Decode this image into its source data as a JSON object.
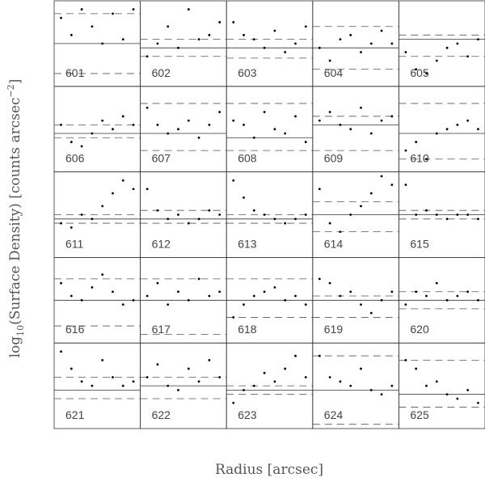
{
  "chart_data": {
    "type": "scatter",
    "x_label": "Radius [arcsec]",
    "y_label": [
      "log",
      "10",
      "(Surface Density) [counts arcsec",
      "−2",
      "]"
    ],
    "xlim": [
      0,
      1
    ],
    "ylim": [
      0,
      1
    ],
    "color": "#000000",
    "x": [
      0.08,
      0.2,
      0.32,
      0.44,
      0.56,
      0.68,
      0.8,
      0.92
    ],
    "panels": [
      {
        "label": "601",
        "values": [
          0.8,
          0.6,
          0.9,
          0.7,
          0.5,
          0.85,
          0.55,
          0.9
        ],
        "solid": 0.5,
        "dashed": [
          0.85,
          0.15
        ]
      },
      {
        "label": "602",
        "values": [
          0.35,
          0.5,
          0.7,
          0.45,
          0.9,
          0.55,
          0.6,
          0.75
        ],
        "solid": 0.45,
        "dashed": [
          0.55,
          0.35
        ]
      },
      {
        "label": "603",
        "values": [
          0.75,
          0.6,
          0.55,
          0.45,
          0.65,
          0.4,
          0.5,
          0.7
        ],
        "solid": 0.45,
        "dashed": [
          0.55,
          0.33
        ]
      },
      {
        "label": "604",
        "values": [
          0.45,
          0.3,
          0.55,
          0.6,
          0.4,
          0.5,
          0.65,
          0.5
        ],
        "solid": 0.45,
        "dashed": [
          0.7,
          0.2
        ]
      },
      {
        "label": "605",
        "values": [
          0.4,
          0.2,
          0.15,
          0.3,
          0.45,
          0.5,
          0.35,
          0.55
        ],
        "solid": 0.55,
        "dashed": [
          0.6,
          0.35
        ]
      },
      {
        "label": "606",
        "values": [
          0.55,
          0.35,
          0.3,
          0.45,
          0.6,
          0.5,
          0.65,
          0.55
        ],
        "solid": 0.45,
        "dashed": [
          0.55,
          0.4
        ]
      },
      {
        "label": "607",
        "values": [
          0.75,
          0.55,
          0.45,
          0.5,
          0.6,
          0.4,
          0.55,
          0.7
        ],
        "solid": 0.45,
        "dashed": [
          0.8,
          0.25
        ]
      },
      {
        "label": "608",
        "values": [
          0.6,
          0.55,
          0.4,
          0.7,
          0.5,
          0.45,
          0.65,
          0.35
        ],
        "solid": 0.4,
        "dashed": [
          0.8,
          0.25
        ]
      },
      {
        "label": "609",
        "values": [
          0.6,
          0.7,
          0.55,
          0.5,
          0.75,
          0.45,
          0.6,
          0.65
        ],
        "solid": 0.55,
        "dashed": [
          0.65,
          0.25
        ]
      },
      {
        "label": "610",
        "values": [
          0.25,
          0.35,
          0.15,
          0.45,
          0.5,
          0.55,
          0.6,
          0.5
        ],
        "solid": 0.45,
        "dashed": [
          0.8,
          0.15
        ]
      },
      {
        "label": "611",
        "values": [
          0.4,
          0.35,
          0.5,
          0.45,
          0.6,
          0.75,
          0.9,
          0.8
        ],
        "solid": 0.45,
        "dashed": [
          0.5,
          0.4
        ]
      },
      {
        "label": "612",
        "values": [
          0.8,
          0.55,
          0.45,
          0.5,
          0.4,
          0.45,
          0.55,
          0.5
        ],
        "solid": 0.45,
        "dashed": [
          0.55,
          0.4
        ]
      },
      {
        "label": "613",
        "values": [
          0.9,
          0.7,
          0.55,
          0.5,
          0.45,
          0.4,
          0.45,
          0.5
        ],
        "solid": 0.45,
        "dashed": [
          0.5,
          0.4
        ]
      },
      {
        "label": "614",
        "values": [
          0.8,
          0.4,
          0.3,
          0.5,
          0.6,
          0.75,
          0.95,
          0.85
        ],
        "solid": 0.5,
        "dashed": [
          0.65,
          0.3
        ]
      },
      {
        "label": "615",
        "values": [
          0.85,
          0.5,
          0.55,
          0.5,
          0.45,
          0.5,
          0.5,
          0.45
        ],
        "solid": 0.5,
        "dashed": [
          0.55,
          0.45
        ]
      },
      {
        "label": "616",
        "values": [
          0.7,
          0.55,
          0.5,
          0.65,
          0.8,
          0.6,
          0.45,
          0.5
        ],
        "solid": 0.5,
        "dashed": [
          0.75,
          0.2
        ]
      },
      {
        "label": "617",
        "values": [
          0.55,
          0.7,
          0.45,
          0.6,
          0.5,
          0.75,
          0.55,
          0.6
        ],
        "solid": 0.5,
        "dashed": [
          0.75,
          0.1
        ]
      },
      {
        "label": "618",
        "values": [
          0.3,
          0.45,
          0.55,
          0.6,
          0.65,
          0.5,
          0.55,
          0.45
        ],
        "solid": 0.5,
        "dashed": [
          0.75,
          0.3
        ]
      },
      {
        "label": "619",
        "values": [
          0.75,
          0.7,
          0.55,
          0.6,
          0.45,
          0.35,
          0.5,
          0.6
        ],
        "solid": 0.5,
        "dashed": [
          0.55,
          0.3
        ]
      },
      {
        "label": "620",
        "values": [
          0.45,
          0.6,
          0.55,
          0.7,
          0.5,
          0.55,
          0.6,
          0.5
        ],
        "solid": 0.5,
        "dashed": [
          0.6,
          0.4
        ]
      },
      {
        "label": "621",
        "values": [
          0.9,
          0.7,
          0.55,
          0.5,
          0.8,
          0.6,
          0.5,
          0.55
        ],
        "solid": 0.45,
        "dashed": [
          0.6,
          0.35
        ]
      },
      {
        "label": "622",
        "values": [
          0.6,
          0.75,
          0.5,
          0.45,
          0.7,
          0.55,
          0.8,
          0.6
        ],
        "solid": 0.5,
        "dashed": [
          0.6,
          0.35
        ]
      },
      {
        "label": "623",
        "values": [
          0.3,
          0.45,
          0.5,
          0.65,
          0.55,
          0.7,
          0.85,
          0.6
        ],
        "solid": 0.45,
        "dashed": [
          0.5,
          0.4
        ]
      },
      {
        "label": "624",
        "values": [
          0.85,
          0.6,
          0.55,
          0.5,
          0.7,
          0.45,
          0.4,
          0.5
        ],
        "solid": 0.45,
        "dashed": [
          0.85,
          0.05
        ]
      },
      {
        "label": "625",
        "values": [
          0.8,
          0.7,
          0.5,
          0.55,
          0.4,
          0.35,
          0.45,
          0.3
        ],
        "solid": 0.4,
        "dashed": [
          0.8,
          0.25
        ]
      }
    ]
  }
}
